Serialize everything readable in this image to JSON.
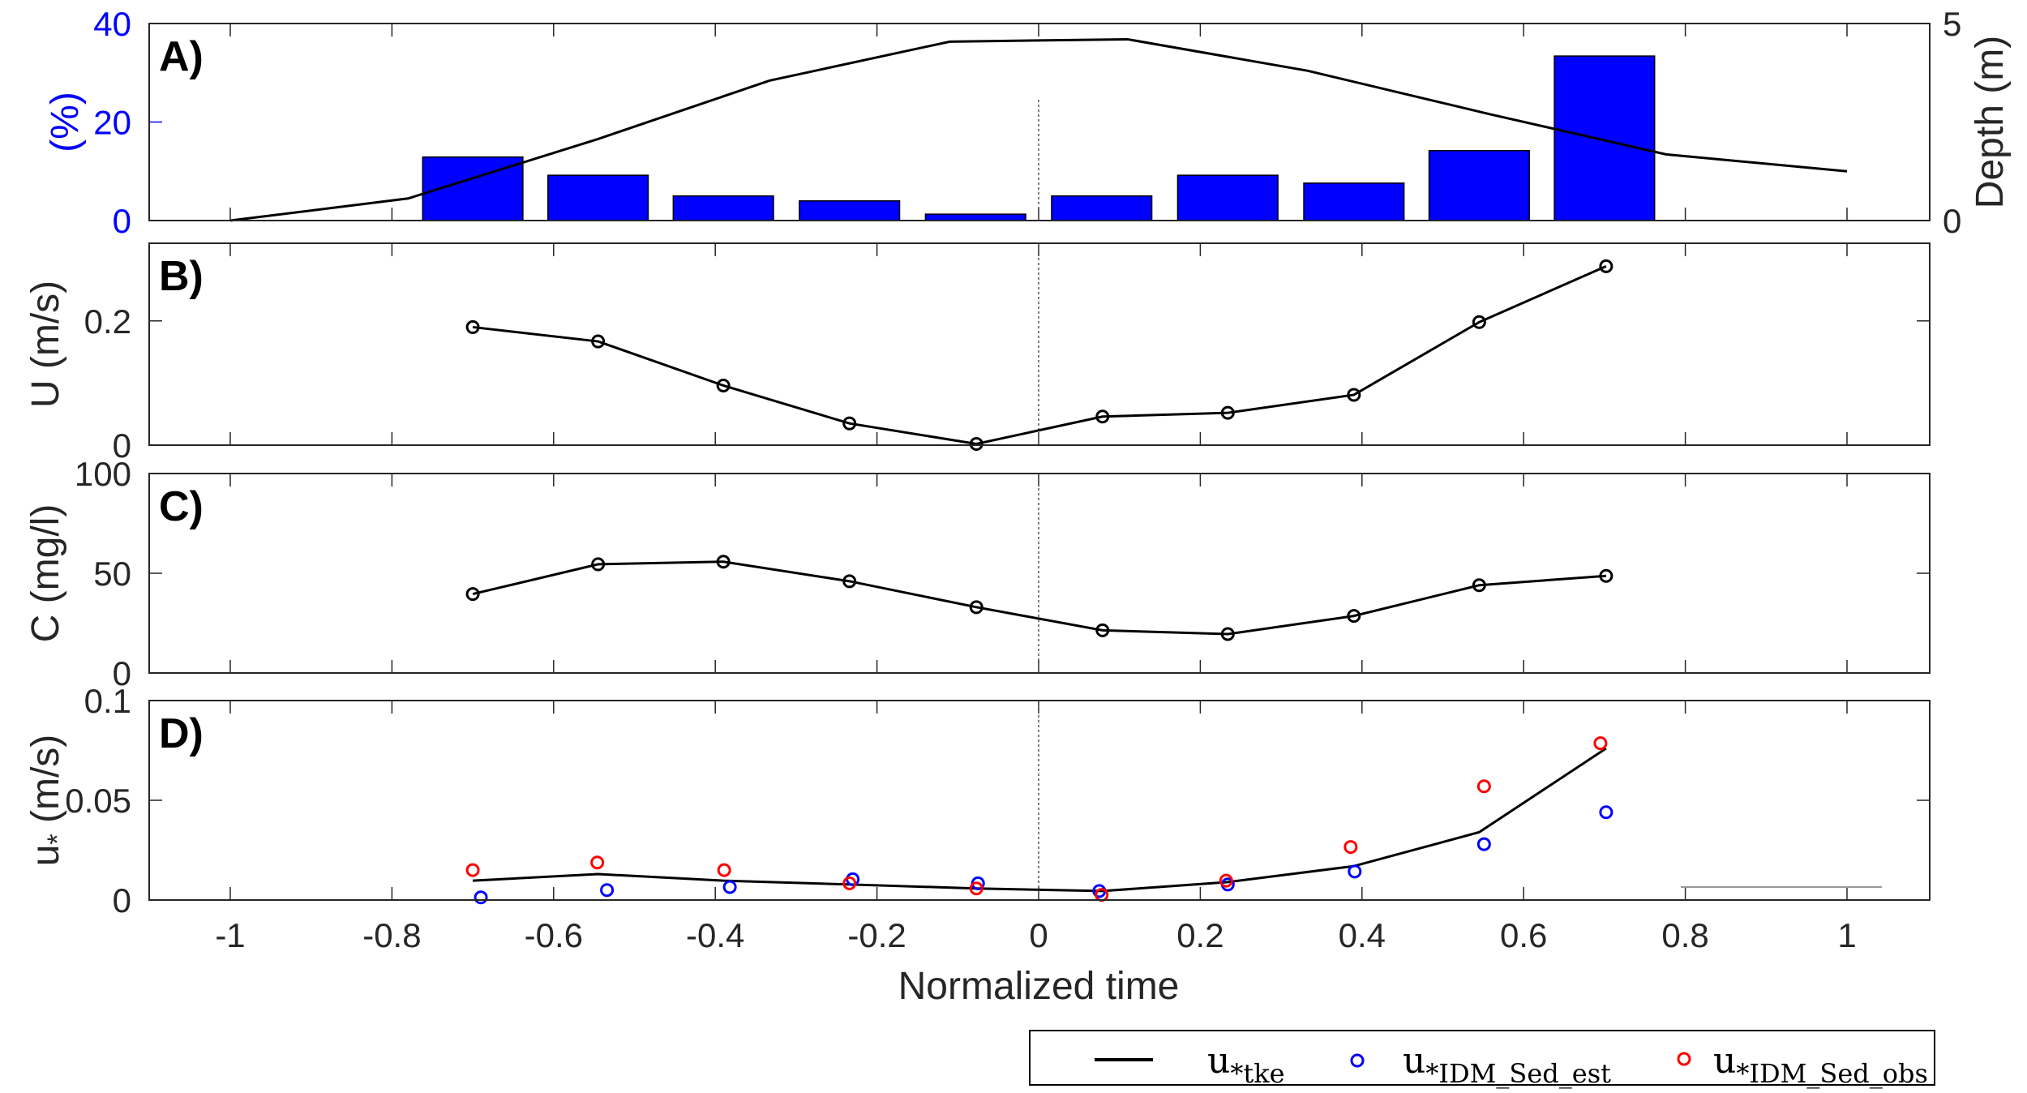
{
  "chart_data": [
    {
      "panel_label": "A)",
      "type": "bar",
      "x": [
        -0.7,
        -0.545,
        -0.39,
        -0.234,
        -0.078,
        0.078,
        0.234,
        0.39,
        0.545,
        0.7
      ],
      "values": [
        12.9,
        9.2,
        5.0,
        4.0,
        1.3,
        5.0,
        9.2,
        7.6,
        14.2,
        33.4
      ],
      "bar_color": "#0000ff",
      "ylabel": "(%)",
      "ylabel_color": "#0000ff",
      "ylim": [
        0,
        40
      ],
      "yticks": [
        "0",
        "20",
        "40"
      ],
      "secondary": {
        "type": "line",
        "x": [
          -1,
          -0.78,
          -0.545,
          -0.333,
          -0.11,
          0.11,
          0.333,
          0.558,
          0.776,
          1
        ],
        "y": [
          0,
          0.56,
          2.07,
          3.55,
          4.54,
          4.6,
          3.8,
          2.7,
          1.68,
          1.25
        ],
        "ylabel": "Depth (m)",
        "ylim": [
          0,
          5
        ],
        "yticks": [
          "0",
          "5"
        ]
      }
    },
    {
      "panel_label": "B)",
      "type": "line",
      "x": [
        -0.7,
        -0.545,
        -0.39,
        -0.234,
        -0.077,
        0.079,
        0.234,
        0.39,
        0.545,
        0.702
      ],
      "y": [
        0.19,
        0.167,
        0.096,
        0.035,
        0.002,
        0.046,
        0.052,
        0.081,
        0.198,
        0.288
      ],
      "ylabel": "U (m/s)",
      "ylim": [
        0,
        0.325
      ],
      "yticks": [
        "0",
        "0.2"
      ]
    },
    {
      "panel_label": "C)",
      "type": "line",
      "x": [
        -0.7,
        -0.545,
        -0.39,
        -0.234,
        -0.077,
        0.079,
        0.234,
        0.39,
        0.545,
        0.702
      ],
      "y": [
        39.6,
        54.5,
        55.8,
        46,
        33,
        21.4,
        19.5,
        28.6,
        44,
        48.7
      ],
      "ylabel": "C (mg/l)",
      "ylim": [
        0,
        100
      ],
      "yticks": [
        "0",
        "50",
        "100"
      ]
    },
    {
      "panel_label": "D)",
      "type": "line",
      "ylabel": {
        "base": "u",
        "sub": "*",
        "unit": " (m/s)"
      },
      "ylim": [
        0,
        0.1
      ],
      "yticks": [
        "0",
        "0.05",
        "0.1"
      ],
      "series": [
        {
          "name": {
            "base": "u",
            "sub": "*tke"
          },
          "style": "line",
          "color": "#000000",
          "x": [
            -0.7,
            -0.545,
            -0.39,
            -0.234,
            -0.077,
            0.079,
            0.234,
            0.39,
            0.545,
            0.702
          ],
          "y": [
            0.0097,
            0.013,
            0.0097,
            0.0078,
            0.0058,
            0.0045,
            0.009,
            0.017,
            0.034,
            0.076
          ]
        },
        {
          "name": {
            "base": "u",
            "sub": "*IDM_Sed_est"
          },
          "style": "marker",
          "color": "#0000ff",
          "x": [
            -0.69,
            -0.534,
            -0.382,
            -0.23,
            -0.075,
            0.075,
            0.234,
            0.391,
            0.551,
            0.702
          ],
          "y": [
            0.0013,
            0.005,
            0.0065,
            0.0104,
            0.0084,
            0.0045,
            0.0078,
            0.0143,
            0.028,
            0.044
          ]
        },
        {
          "name": {
            "base": "u",
            "sub": "*IDM_Sed_obs"
          },
          "style": "marker",
          "color": "#ff0000",
          "x": [
            -0.7,
            -0.546,
            -0.389,
            -0.234,
            -0.077,
            0.078,
            0.232,
            0.386,
            0.551,
            0.695
          ],
          "y": [
            0.015,
            0.0188,
            0.015,
            0.0084,
            0.0058,
            0.0026,
            0.0097,
            0.0266,
            0.057,
            0.0786
          ]
        }
      ]
    }
  ],
  "xaxis": {
    "label": "Normalized time",
    "xlim": [
      -1.1,
      1.1
    ],
    "ticks": [
      -1,
      -0.8,
      -0.6,
      -0.4,
      -0.2,
      0,
      0.2,
      0.4,
      0.6,
      0.8,
      1
    ],
    "tick_labels": [
      "-1",
      "-0.8",
      "-0.6",
      "-0.4",
      "-0.2",
      "0",
      "0.2",
      "0.4",
      "0.6",
      "0.8",
      "1"
    ]
  },
  "legend": {
    "placement": "bottom-right",
    "entries": [
      {
        "base": "u",
        "sub": "*tke"
      },
      {
        "base": "u",
        "sub": "*IDM_Sed_est"
      },
      {
        "base": "u",
        "sub": "*IDM_Sed_obs"
      }
    ]
  },
  "reference_line_x": 0,
  "grid": false
}
